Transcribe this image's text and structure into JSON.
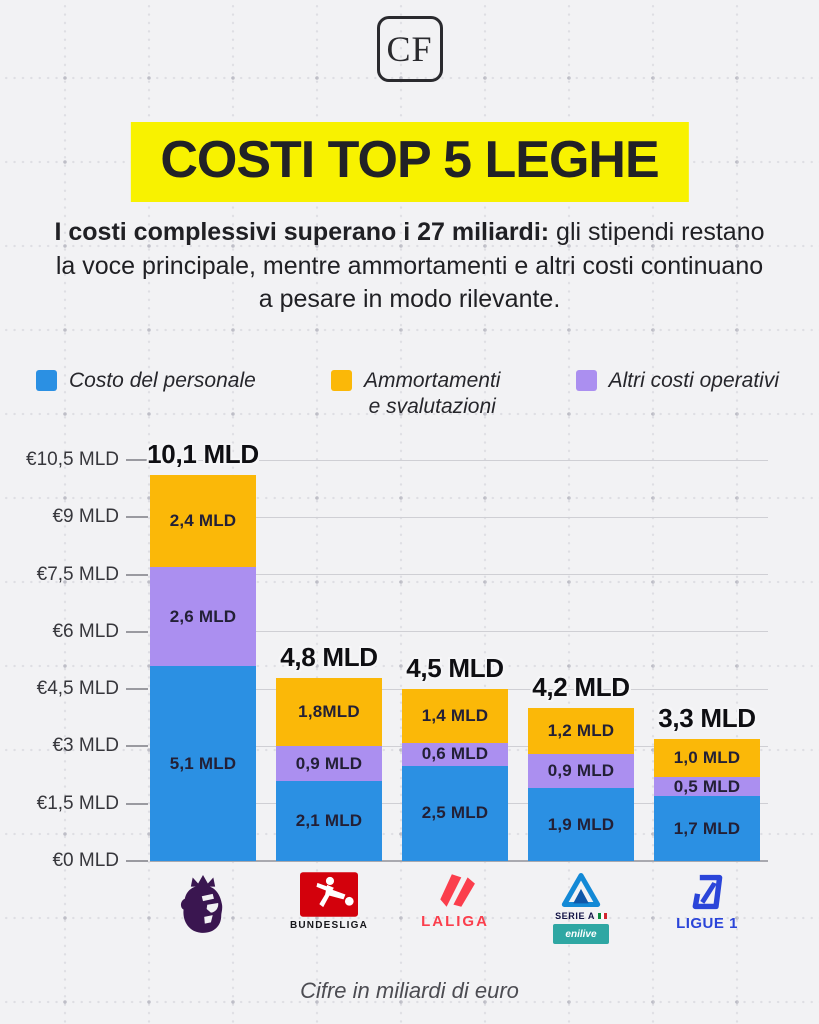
{
  "brand": {
    "logo_text": "CF"
  },
  "title": "COSTI TOP 5 LEGHE",
  "subtitle": {
    "bold": "I costi complessivi superano i 27 miliardi:",
    "rest": " gli stipendi restano la voce principale, mentre ammortamenti e altri costi continuano a pesare in modo rilevante."
  },
  "legend": {
    "items": [
      {
        "label": "Costo del personale",
        "color": "#2b90e3"
      },
      {
        "label": "Ammortamenti\ne svalutazioni",
        "color": "#fbb808"
      },
      {
        "label": "Altri costi operativi",
        "color": "#ab8ff0"
      }
    ]
  },
  "chart_data": {
    "type": "bar",
    "stacked": true,
    "title": "COSTI TOP 5 LEGHE",
    "xlabel": "",
    "ylabel": "",
    "ylim": [
      0,
      10.5
    ],
    "grid": true,
    "legend_position": "top",
    "categories": [
      "Premier League",
      "Bundesliga",
      "LaLiga",
      "Serie A",
      "Ligue 1"
    ],
    "series": [
      {
        "name": "Costo del personale",
        "color": "#2b90e3",
        "values": [
          5.1,
          2.1,
          2.5,
          1.9,
          1.7
        ],
        "labels": [
          "5,1 MLD",
          "2,1 MLD",
          "2,5 MLD",
          "1,9 MLD",
          "1,7 MLD"
        ]
      },
      {
        "name": "Altri costi operativi",
        "color": "#ab8ff0",
        "values": [
          2.6,
          0.9,
          0.6,
          0.9,
          0.5
        ],
        "labels": [
          "2,6 MLD",
          "0,9 MLD",
          "0,6 MLD",
          "0,9 MLD",
          "0,5 MLD"
        ]
      },
      {
        "name": "Ammortamenti e svalutazioni",
        "color": "#fbb808",
        "values": [
          2.4,
          1.8,
          1.4,
          1.2,
          1.0
        ],
        "labels": [
          "2,4 MLD",
          "1,8MLD",
          "1,4 MLD",
          "1,2 MLD",
          "1,0 MLD"
        ]
      }
    ],
    "totals": [
      10.1,
      4.8,
      4.5,
      4.2,
      3.3
    ],
    "total_labels": [
      "10,1 MLD",
      "4,8 MLD",
      "4,5 MLD",
      "4,2 MLD",
      "3,3 MLD"
    ],
    "y_ticks": [
      {
        "label": "€10,5 MLD",
        "value": 10.5
      },
      {
        "label": "€9 MLD",
        "value": 9
      },
      {
        "label": "€7,5 MLD",
        "value": 7.5
      },
      {
        "label": "€6 MLD",
        "value": 6
      },
      {
        "label": "€4,5 MLD",
        "value": 4.5
      },
      {
        "label": "€3 MLD",
        "value": 3
      },
      {
        "label": "€1,5 MLD",
        "value": 1.5
      },
      {
        "label": "€0 MLD",
        "value": 0
      }
    ]
  },
  "logos": {
    "bundesliga_text": "BUNDESLIGA",
    "laliga_text": "LALIGA",
    "seriea_text": "SERIE A",
    "seriea_sponsor": "enilive",
    "ligue1_text": "LIGUE 1"
  },
  "footer": "Cifre in miliardi di euro",
  "colors": {
    "accent_yellow": "#f8f200",
    "blue": "#2b90e3",
    "orange": "#fbb808",
    "purple": "#ab8ff0",
    "premier_purple": "#3a1650",
    "bundesliga_red": "#d3010c",
    "laliga_red": "#fb3e4c",
    "seriea_blue": "#1389d6",
    "enilive_teal": "#2fa7a3",
    "ligue1_blue": "#2b45d9"
  }
}
